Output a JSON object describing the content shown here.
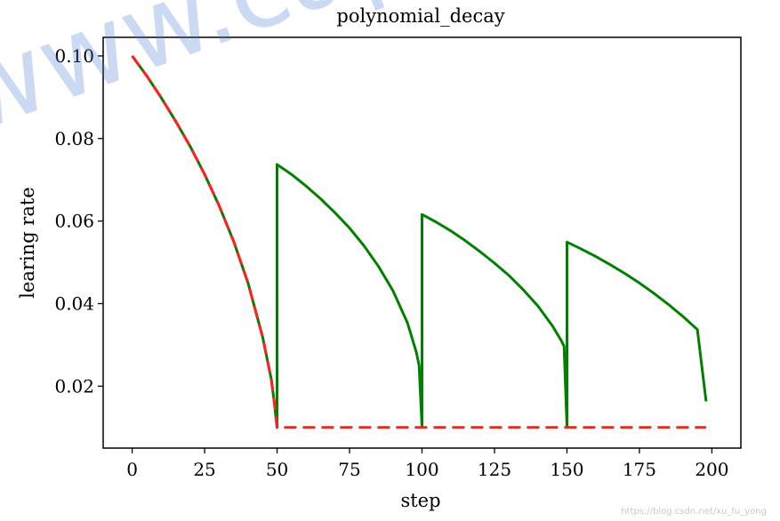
{
  "chart_data": {
    "type": "line",
    "title": "polynomial_decay",
    "xlabel": "step",
    "ylabel": "learing rate",
    "xlim": [
      -10,
      210
    ],
    "ylim": [
      0.005,
      0.1045
    ],
    "xticks": [
      0,
      25,
      50,
      75,
      100,
      125,
      150,
      175,
      200
    ],
    "yticks": [
      0.02,
      0.04,
      0.06,
      0.08,
      0.1
    ],
    "ytick_labels": [
      "0.02",
      "0.04",
      "0.06",
      "0.08",
      "0.10"
    ],
    "grid": false,
    "legend": "none",
    "series": [
      {
        "color": "#008000",
        "style": "solid",
        "x": [
          0,
          5,
          10,
          15,
          20,
          25,
          30,
          35,
          40,
          45,
          48,
          49,
          50,
          50,
          55,
          60,
          65,
          70,
          75,
          80,
          85,
          90,
          95,
          98,
          99,
          100,
          100,
          105,
          110,
          115,
          120,
          125,
          130,
          135,
          140,
          145,
          148,
          149,
          150,
          150,
          155,
          160,
          165,
          170,
          175,
          180,
          185,
          190,
          195,
          198
        ],
        "y": [
          0.1,
          0.0952,
          0.0899,
          0.0842,
          0.0781,
          0.0713,
          0.0637,
          0.0551,
          0.0449,
          0.0319,
          0.0217,
          0.0163,
          0.01,
          0.0737,
          0.0713,
          0.0685,
          0.0654,
          0.062,
          0.0583,
          0.054,
          0.049,
          0.0431,
          0.0353,
          0.0283,
          0.0251,
          0.01,
          0.0616,
          0.0597,
          0.0576,
          0.0552,
          0.0526,
          0.0498,
          0.0468,
          0.0433,
          0.0394,
          0.0346,
          0.0311,
          0.0297,
          0.01,
          0.0549,
          0.0532,
          0.0514,
          0.0494,
          0.0473,
          0.045,
          0.0425,
          0.0398,
          0.0369,
          0.0337,
          0.0163
        ]
      },
      {
        "color": "#ff1f1f",
        "style": "dashed",
        "x": [
          0,
          5,
          10,
          15,
          20,
          25,
          30,
          35,
          40,
          45,
          48,
          49,
          50,
          75,
          100,
          125,
          150,
          175,
          198
        ],
        "y": [
          0.1,
          0.0952,
          0.0899,
          0.0842,
          0.0781,
          0.0713,
          0.0637,
          0.0551,
          0.0449,
          0.0319,
          0.0217,
          0.0163,
          0.01,
          0.01,
          0.01,
          0.01,
          0.01,
          0.01,
          0.01
        ]
      }
    ]
  },
  "watermark": {
    "text": "www.captainbed.net",
    "credit": "https://blog.csdn.net/xu_fu_yong"
  }
}
